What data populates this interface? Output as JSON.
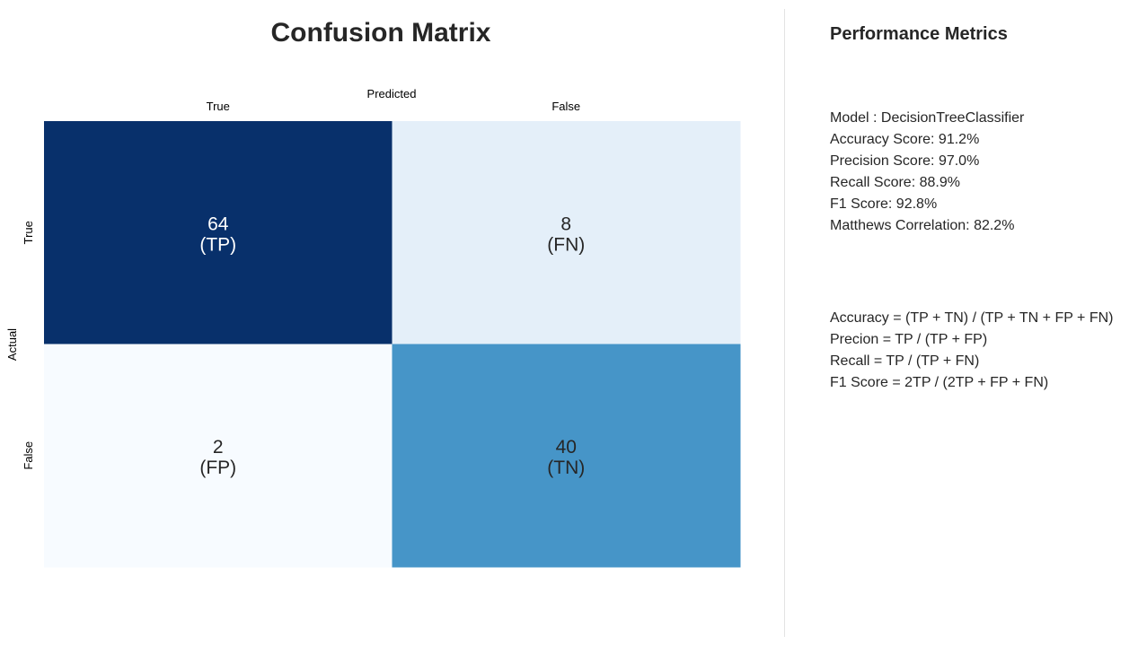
{
  "chart_data": {
    "type": "heatmap",
    "title": "Confusion Matrix",
    "xlabel": "Predicted",
    "ylabel": "Actual",
    "x_categories": [
      "True",
      "False"
    ],
    "y_categories": [
      "True",
      "False"
    ],
    "values": [
      [
        64,
        8
      ],
      [
        2,
        40
      ]
    ],
    "cell_labels": [
      [
        "(TP)",
        "(FN)"
      ],
      [
        "(FP)",
        "(TN)"
      ]
    ],
    "colormap": "Blues",
    "colorbar": false,
    "x_tick_position": "top"
  },
  "metrics": {
    "title": "Performance Metrics",
    "model": "Model : DecisionTreeClassifier",
    "scores": [
      "Accuracy Score: 91.2%",
      "Precision Score: 97.0%",
      "Recall Score: 88.9%",
      "F1 Score: 92.8%",
      "Matthews Correlation: 82.2%"
    ],
    "formulas": [
      "Accuracy = (TP + TN) / (TP + TN + FP + FN)",
      "Precion = TP / (TP + FP)",
      "Recall = TP / (TP + FN)",
      "F1 Score = 2TP / (2TP + FP + FN)"
    ]
  }
}
